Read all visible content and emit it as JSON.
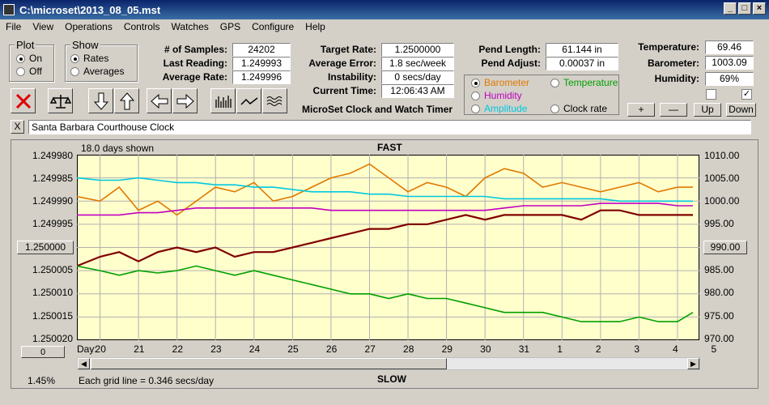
{
  "window": {
    "title": "C:\\microset\\2013_08_05.mst"
  },
  "menu": [
    "File",
    "View",
    "Operations",
    "Controls",
    "Watches",
    "GPS",
    "Configure",
    "Help"
  ],
  "plot_group": {
    "title": "Plot",
    "on": "On",
    "off": "Off",
    "selected": "On"
  },
  "show_group": {
    "title": "Show",
    "rates": "Rates",
    "averages": "Averages",
    "selected": "Rates"
  },
  "stats": {
    "samples_label": "# of Samples:",
    "samples": "24202",
    "last_label": "Last Reading:",
    "last": "1.249993",
    "avg_rate_label": "Average Rate:",
    "avg_rate": "1.249996",
    "target_label": "Target Rate:",
    "target": "1.2500000",
    "avg_err_label": "Average Error:",
    "avg_err": "1.8 sec/week",
    "instab_label": "Instability:",
    "instab": "0 secs/day",
    "time_label": "Current Time:",
    "time": "12:06:43 AM",
    "pend_len_label": "Pend Length:",
    "pend_len": "61.144 in",
    "pend_adj_label": "Pend Adjust:",
    "pend_adj": "0.00037 in",
    "temp_label": "Temperature:",
    "temp": "69.46",
    "baro_label": "Barometer:",
    "baro": "1003.09",
    "hum_label": "Humidity:",
    "hum": "69%"
  },
  "app_name": "MicroSet Clock and Watch Timer",
  "overlay_options": {
    "barometer": "Barometer",
    "temperature": "Temperature",
    "humidity": "Humidity",
    "amplitude": "Amplitude",
    "clock_rate": "Clock rate",
    "selected": "Barometer",
    "colors": {
      "barometer": "#e07800",
      "temperature": "#00a000",
      "humidity": "#c000c0",
      "amplitude": "#00c8e0",
      "clock_rate": "#000000"
    }
  },
  "right_buttons": [
    "+",
    "—",
    "Up",
    "Down"
  ],
  "checkboxes": [
    false,
    true
  ],
  "watch_name": "Santa Barbara Courthouse Clock",
  "close_label": "X",
  "plot": {
    "days_shown": "18.0 days shown",
    "fast": "FAST",
    "slow": "SLOW",
    "left_ticks": [
      "1.249980",
      "1.249985",
      "1.249990",
      "1.249995",
      "1.250000",
      "1.250005",
      "1.250010",
      "1.250015",
      "1.250020"
    ],
    "right_ticks": [
      "1010.00",
      "1005.00",
      "1000.00",
      "995.00",
      "990.00",
      "985.00",
      "980.00",
      "975.00",
      "970.00"
    ],
    "left_center_button": "1.250000",
    "right_center_button": "990.00",
    "zero_button": "0",
    "day_label": "Day:",
    "days": [
      "20",
      "21",
      "22",
      "23",
      "24",
      "25",
      "26",
      "27",
      "28",
      "29",
      "30",
      "31",
      "1",
      "2",
      "3",
      "4",
      "5"
    ],
    "percent": "1.45%",
    "grid_note": "Each grid line = 0.346 secs/day",
    "bg": "#ffffcc"
  },
  "chart_data": {
    "type": "line",
    "x_label": "Day",
    "x_ticks": [
      "20",
      "21",
      "22",
      "23",
      "24",
      "25",
      "26",
      "27",
      "28",
      "29",
      "30",
      "31",
      "1",
      "2",
      "3",
      "4",
      "5"
    ],
    "ylim_left": [
      1.25002,
      1.24998
    ],
    "ylim_right": [
      970,
      1010
    ],
    "series": [
      {
        "name": "Clock rate",
        "color": "#800000",
        "axis": "left",
        "x": [
          19.4,
          20,
          20.5,
          21,
          21.5,
          22,
          22.5,
          23,
          23.5,
          24,
          24.5,
          25,
          25.5,
          26,
          26.5,
          27,
          27.5,
          28,
          28.5,
          29,
          29.5,
          30,
          30.5,
          31,
          31.5,
          32,
          32.5,
          33,
          33.5,
          34,
          34.5,
          35,
          35.4
        ],
        "y": [
          1.250004,
          1.250002,
          1.250001,
          1.250003,
          1.250001,
          1.25,
          1.250001,
          1.25,
          1.250002,
          1.250001,
          1.250001,
          1.25,
          1.249999,
          1.249998,
          1.249997,
          1.249996,
          1.249996,
          1.249995,
          1.249995,
          1.249994,
          1.249993,
          1.249994,
          1.249993,
          1.249993,
          1.249993,
          1.249993,
          1.249994,
          1.249992,
          1.249992,
          1.249993,
          1.249993,
          1.249993,
          1.249993
        ]
      },
      {
        "name": "Barometer",
        "color": "#e07800",
        "axis": "right",
        "x": [
          19.4,
          20,
          20.5,
          21,
          21.5,
          22,
          22.5,
          23,
          23.5,
          24,
          24.5,
          25,
          25.5,
          26,
          26.5,
          27,
          27.5,
          28,
          28.5,
          29,
          29.5,
          30,
          30.5,
          31,
          31.5,
          32,
          32.5,
          33,
          33.5,
          34,
          34.5,
          35,
          35.4
        ],
        "y": [
          1001,
          1000,
          1003,
          998,
          1000,
          997,
          1000,
          1003,
          1002,
          1004,
          1000,
          1001,
          1003,
          1005,
          1006,
          1008,
          1005,
          1002,
          1004,
          1003,
          1001,
          1005,
          1007,
          1006,
          1003,
          1004,
          1003,
          1002,
          1003,
          1004,
          1002,
          1003,
          1003
        ]
      },
      {
        "name": "Amplitude",
        "color": "#00c8e0",
        "axis": "right",
        "x": [
          19.4,
          20,
          20.5,
          21,
          21.5,
          22,
          22.5,
          23,
          23.5,
          24,
          24.5,
          25,
          25.5,
          26,
          26.5,
          27,
          27.5,
          28,
          28.5,
          29,
          29.5,
          30,
          30.5,
          31,
          31.5,
          32,
          32.5,
          33,
          33.5,
          34,
          34.5,
          35,
          35.4
        ],
        "y": [
          1005,
          1004.5,
          1004.5,
          1005,
          1004.5,
          1004,
          1004,
          1003.5,
          1003.5,
          1003,
          1003,
          1002.5,
          1002,
          1002,
          1002,
          1001.5,
          1001.5,
          1001,
          1001,
          1001,
          1001,
          1001,
          1000.5,
          1000.5,
          1000.5,
          1000.5,
          1000.5,
          1000.5,
          1000,
          1000,
          1000,
          1000,
          1000
        ]
      },
      {
        "name": "Humidity",
        "color": "#c000c0",
        "axis": "right",
        "x": [
          19.4,
          20,
          20.5,
          21,
          21.5,
          22,
          22.5,
          23,
          23.5,
          24,
          24.5,
          25,
          25.5,
          26,
          26.5,
          27,
          27.5,
          28,
          28.5,
          29,
          29.5,
          30,
          30.5,
          31,
          31.5,
          32,
          32.5,
          33,
          33.5,
          34,
          34.5,
          35,
          35.4
        ],
        "y": [
          997,
          997,
          997,
          997.5,
          997.5,
          998,
          998.5,
          998.5,
          998.5,
          998.5,
          998.5,
          998.5,
          998.5,
          998,
          998,
          998,
          998,
          998,
          998,
          998,
          998,
          998,
          998.5,
          999,
          999,
          999,
          999,
          999.5,
          999.5,
          999.5,
          999.5,
          999,
          999
        ]
      },
      {
        "name": "Temperature",
        "color": "#00a000",
        "axis": "right",
        "x": [
          19.4,
          20,
          20.5,
          21,
          21.5,
          22,
          22.5,
          23,
          23.5,
          24,
          24.5,
          25,
          25.5,
          26,
          26.5,
          27,
          27.5,
          28,
          28.5,
          29,
          29.5,
          30,
          30.5,
          31,
          31.5,
          32,
          32.5,
          33,
          33.5,
          34,
          34.5,
          35,
          35.4
        ],
        "y": [
          986,
          985,
          984,
          985,
          984.5,
          985,
          986,
          985,
          984,
          985,
          984,
          983,
          982,
          981,
          980,
          980,
          979,
          980,
          979,
          979,
          978,
          977,
          976,
          976,
          976,
          975,
          974,
          974,
          974,
          975,
          974,
          974,
          976
        ]
      }
    ]
  }
}
